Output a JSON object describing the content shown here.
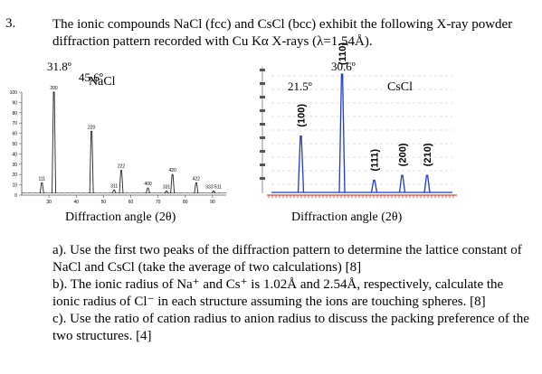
{
  "question_number": "3.",
  "intro": "The ionic compounds NaCl (fcc) and CsCl (bcc) exhibit the following X-ray powder diffraction pattern recorded with Cu Kα X-rays (λ=1.54Å).",
  "chart_data": [
    {
      "type": "line",
      "title": "NaCl",
      "xlabel": "Diffraction angle (2θ)",
      "ylabel": "",
      "xlim": [
        20,
        90
      ],
      "ylim": [
        0,
        100
      ],
      "y_ticks": [
        "100",
        "90",
        "80",
        "70",
        "60",
        "50",
        "40",
        "30",
        "20",
        "10",
        "0"
      ],
      "x_ticks": [
        "30",
        "40",
        "50",
        "60",
        "70",
        "80",
        "90"
      ],
      "peaks": [
        {
          "x": 27.4,
          "y": 12,
          "label": "111"
        },
        {
          "x": 31.8,
          "y": 100,
          "label": "200"
        },
        {
          "x": 45.6,
          "y": 62,
          "label": "220"
        },
        {
          "x": 53.9,
          "y": 5,
          "label": "311"
        },
        {
          "x": 56.5,
          "y": 24,
          "label": "222"
        },
        {
          "x": 66.3,
          "y": 7,
          "label": "400"
        },
        {
          "x": 73.1,
          "y": 4,
          "label": "331"
        },
        {
          "x": 75.3,
          "y": 20,
          "label": "420"
        },
        {
          "x": 84.0,
          "y": 12,
          "label": "422"
        },
        {
          "x": 90.4,
          "y": 4,
          "label": "333 511"
        }
      ],
      "annotations": [
        "31.8º",
        "45.6º"
      ]
    },
    {
      "type": "line",
      "title": "CsCl",
      "xlabel": "Diffraction angle (2θ)",
      "ylabel": "",
      "peaks": [
        {
          "x": 21.5,
          "y": 48,
          "label": "(100)"
        },
        {
          "x": 30.6,
          "y": 100,
          "label": "(110)"
        },
        {
          "x": 37.7,
          "y": 11,
          "label": "(111)"
        },
        {
          "x": 43.9,
          "y": 15,
          "label": "(200)"
        },
        {
          "x": 49.4,
          "y": 15,
          "label": "(210)"
        }
      ],
      "annotations": [
        "21.5º",
        "30.6º"
      ]
    }
  ],
  "parts": [
    "a). Use the first two peaks of the diffraction pattern to determine the lattice constant of NaCl and CsCl (take the average of two calculations) [8]",
    "b). The ionic radius of Na⁺ and Cs⁺ is 1.02Å and 2.54Å, respectively, calculate the ionic radius of Cl⁻ in each structure assuming the ions are touching spheres. [8]",
    "c). Use the ratio of cation radius to anion radius to discuss the packing preference of the two structures. [4]"
  ]
}
